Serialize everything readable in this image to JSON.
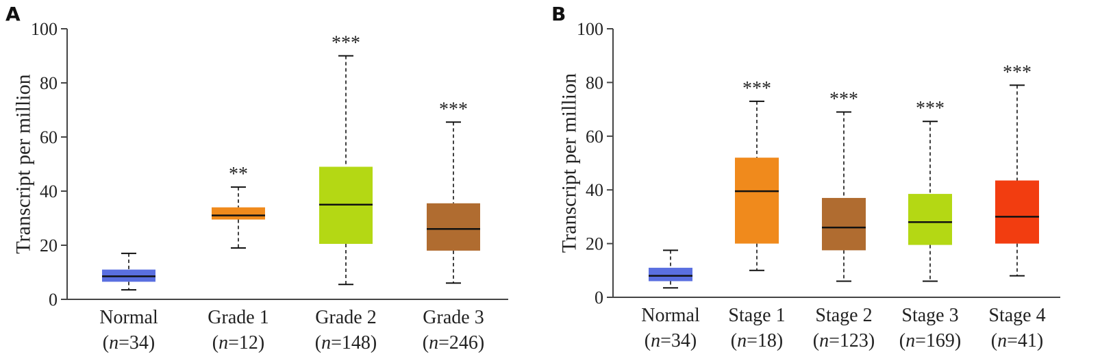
{
  "chart_data": [
    {
      "type": "box",
      "panel_label": "A",
      "ylabel": "Transcript per million",
      "ylim": [
        0,
        100
      ],
      "yticks": [
        0,
        20,
        40,
        60,
        80,
        100
      ],
      "groups": [
        {
          "name": "Normal",
          "n": "34",
          "min": 3.5,
          "q1": 6.5,
          "median": 8.5,
          "q3": 11,
          "max": 17,
          "color": "#5a6fe0",
          "sig": ""
        },
        {
          "name": "Grade 1",
          "n": "12",
          "min": 19,
          "q1": 29.5,
          "median": 31,
          "q3": 34,
          "max": 41.5,
          "color": "#f08a1c",
          "sig": "**"
        },
        {
          "name": "Grade 2",
          "n": "148",
          "min": 5.5,
          "q1": 20.5,
          "median": 35,
          "q3": 49,
          "max": 90,
          "color": "#b4d814",
          "sig": "***"
        },
        {
          "name": "Grade 3",
          "n": "246",
          "min": 6,
          "q1": 18,
          "median": 26,
          "q3": 35.5,
          "max": 65.5,
          "color": "#b06c30",
          "sig": "***"
        }
      ]
    },
    {
      "type": "box",
      "panel_label": "B",
      "ylabel": "Transcript per million",
      "ylim": [
        0,
        100
      ],
      "yticks": [
        0,
        20,
        40,
        60,
        80,
        100
      ],
      "groups": [
        {
          "name": "Normal",
          "n": "34",
          "min": 3.5,
          "q1": 6,
          "median": 8,
          "q3": 11,
          "max": 17.5,
          "color": "#5a6fe0",
          "sig": ""
        },
        {
          "name": "Stage 1",
          "n": "18",
          "min": 10,
          "q1": 20,
          "median": 39.5,
          "q3": 52,
          "max": 73,
          "color": "#f08a1c",
          "sig": "***"
        },
        {
          "name": "Stage 2",
          "n": "123",
          "min": 6,
          "q1": 17.5,
          "median": 26,
          "q3": 37,
          "max": 69,
          "color": "#b06c30",
          "sig": "***"
        },
        {
          "name": "Stage 3",
          "n": "169",
          "min": 6,
          "q1": 19.5,
          "median": 28,
          "q3": 38.5,
          "max": 65.5,
          "color": "#b4d814",
          "sig": "***"
        },
        {
          "name": "Stage 4",
          "n": "41",
          "min": 8,
          "q1": 20,
          "median": 30,
          "q3": 43.5,
          "max": 79,
          "color": "#f23d10",
          "sig": "***"
        }
      ]
    }
  ]
}
